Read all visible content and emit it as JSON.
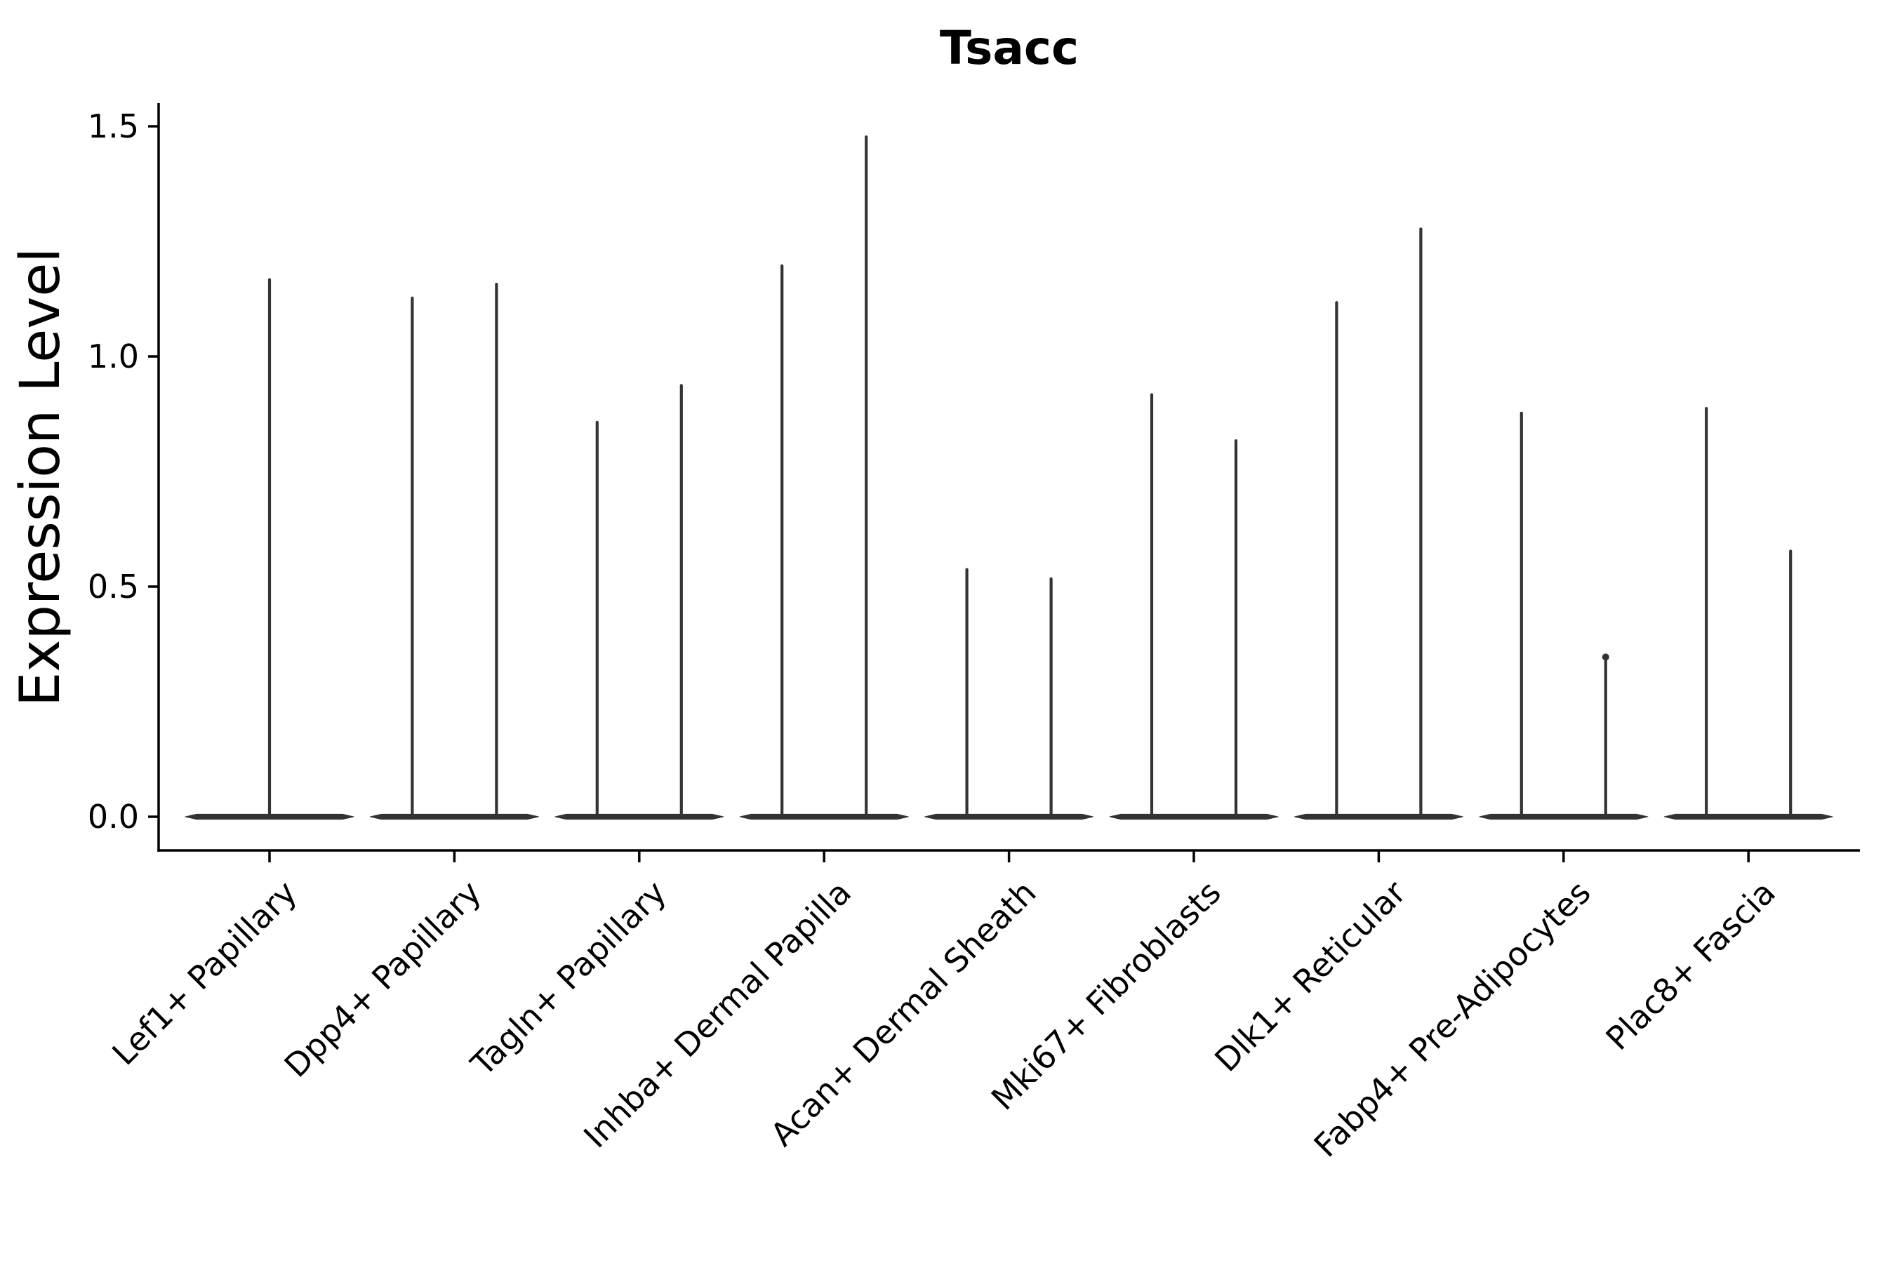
{
  "chart_data": {
    "type": "violin",
    "title": "Tsacc",
    "ylabel": "Expression Level",
    "xlabel": "",
    "ylim": [
      -0.07,
      1.55
    ],
    "yticks": [
      "0.0",
      "0.5",
      "1.0",
      "1.5"
    ],
    "ytick_values": [
      0.0,
      0.5,
      1.0,
      1.5
    ],
    "x_tick_rotation": 45,
    "grid": false,
    "legend_position": "none",
    "violin_color": "#333333",
    "axis_color": "#000000",
    "categories": [
      "Lef1+ Papillary",
      "Dpp4+ Papillary",
      "Tagln+ Papillary",
      "Inhba+ Dermal Papilla",
      "Acan+ Dermal Sheath",
      "Mki67+ Fibroblasts",
      "Dlk1+ Reticular",
      "Fabp4+ Pre-Adipocytes",
      "Plac8+ Fascia"
    ],
    "groups": [
      {
        "category": "Lef1+ Papillary",
        "violin_max_values": [
          1.17
        ]
      },
      {
        "category": "Dpp4+ Papillary",
        "violin_max_values": [
          1.13,
          1.16
        ]
      },
      {
        "category": "Tagln+ Papillary",
        "violin_max_values": [
          0.86,
          0.94
        ]
      },
      {
        "category": "Inhba+ Dermal Papilla",
        "violin_max_values": [
          1.2,
          1.48
        ]
      },
      {
        "category": "Acan+ Dermal Sheath",
        "violin_max_values": [
          0.54,
          0.52
        ]
      },
      {
        "category": "Mki67+ Fibroblasts",
        "violin_max_values": [
          0.92,
          0.82
        ]
      },
      {
        "category": "Dlk1+ Reticular",
        "violin_max_values": [
          1.12,
          1.28
        ]
      },
      {
        "category": "Fabp4+ Pre-Adipocytes",
        "violin_max_values": [
          0.88,
          0.35
        ]
      },
      {
        "category": "Plac8+ Fascia",
        "violin_max_values": [
          0.89,
          0.58
        ]
      }
    ]
  }
}
